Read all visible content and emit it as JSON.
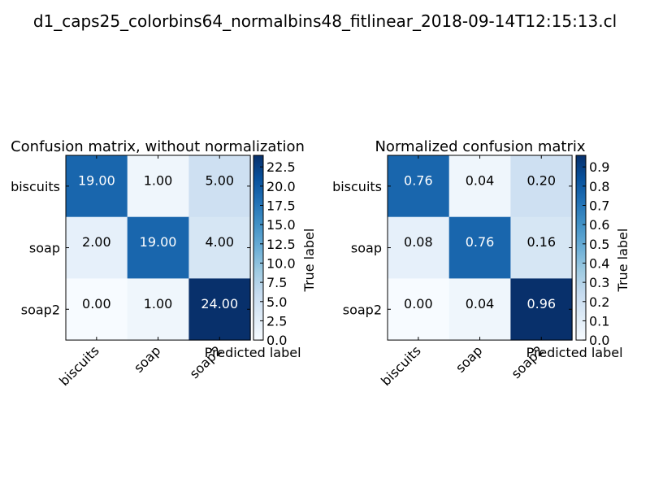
{
  "figure_title": "d1_caps25_colorbins64_normalbins48_fitlinear_2018-09-14T12:15:13.cl",
  "chart_data": [
    {
      "type": "heatmap",
      "title": "Confusion matrix, without normalization",
      "xlabel": "Predicted label",
      "ylabel": "True label",
      "x_categories": [
        "biscuits",
        "soap",
        "soap2"
      ],
      "y_categories": [
        "biscuits",
        "soap",
        "soap2"
      ],
      "values": [
        [
          19,
          1,
          5
        ],
        [
          2,
          19,
          4
        ],
        [
          0,
          1,
          24
        ]
      ],
      "value_labels": [
        [
          "19.00",
          "1.00",
          "5.00"
        ],
        [
          "2.00",
          "19.00",
          "4.00"
        ],
        [
          "0.00",
          "1.00",
          "24.00"
        ]
      ],
      "colormap": "Blues",
      "color_range": [
        0,
        24
      ],
      "colorbar_ticks": [
        "0.0",
        "2.5",
        "5.0",
        "7.5",
        "10.0",
        "12.5",
        "15.0",
        "17.5",
        "20.0",
        "22.5"
      ],
      "colorbar_tick_values": [
        0,
        2.5,
        5,
        7.5,
        10,
        12.5,
        15,
        17.5,
        20,
        22.5
      ]
    },
    {
      "type": "heatmap",
      "title": "Normalized confusion matrix",
      "xlabel": "Predicted label",
      "ylabel": "True label",
      "x_categories": [
        "biscuits",
        "soap",
        "soap2"
      ],
      "y_categories": [
        "biscuits",
        "soap",
        "soap2"
      ],
      "values": [
        [
          0.76,
          0.04,
          0.2
        ],
        [
          0.08,
          0.76,
          0.16
        ],
        [
          0.0,
          0.04,
          0.96
        ]
      ],
      "value_labels": [
        [
          "0.76",
          "0.04",
          "0.20"
        ],
        [
          "0.08",
          "0.76",
          "0.16"
        ],
        [
          "0.00",
          "0.04",
          "0.96"
        ]
      ],
      "colormap": "Blues",
      "color_range": [
        0,
        0.96
      ],
      "colorbar_ticks": [
        "0.0",
        "0.1",
        "0.2",
        "0.3",
        "0.4",
        "0.5",
        "0.6",
        "0.7",
        "0.8",
        "0.9"
      ],
      "colorbar_tick_values": [
        0,
        0.1,
        0.2,
        0.3,
        0.4,
        0.5,
        0.6,
        0.7,
        0.8,
        0.9
      ]
    }
  ]
}
